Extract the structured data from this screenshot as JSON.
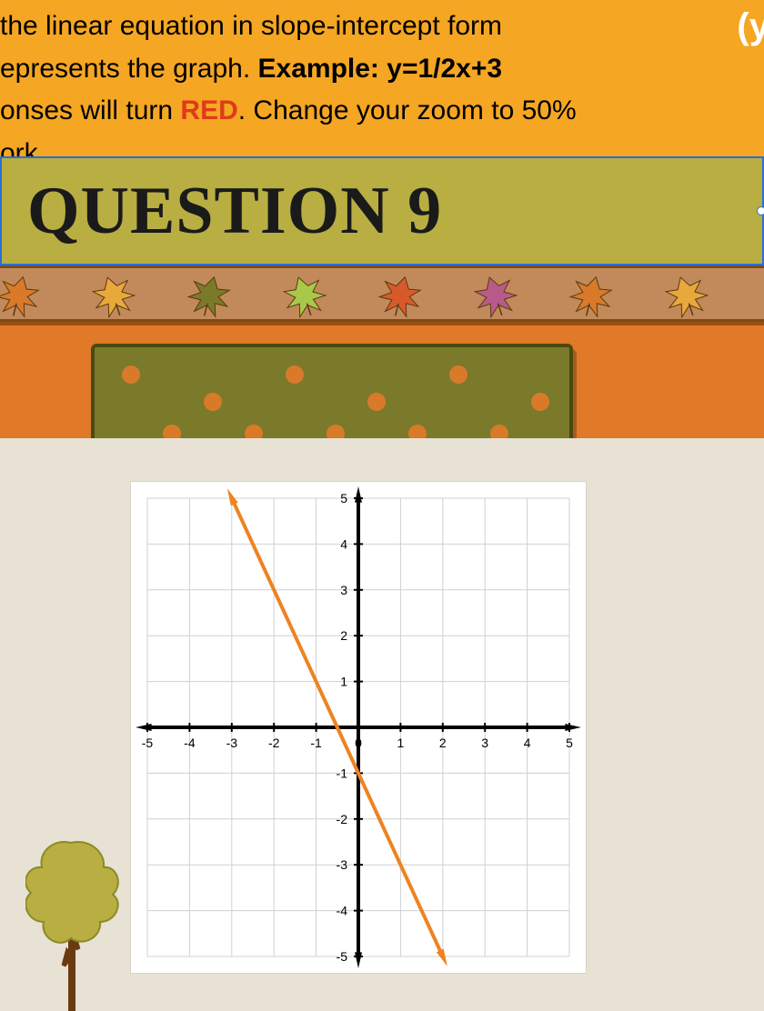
{
  "instructions": {
    "line1_left": " the linear equation in slope-intercept form ",
    "paren_fragment": "(y",
    "line2_left": "epresents the graph. ",
    "line2_bold": "Example: y=1/2x+3",
    "line3_left": "onses will turn ",
    "line3_red": "RED",
    "line3_right": ". Change your zoom to 50%",
    "line4": "ork"
  },
  "banner": {
    "title": "QUESTION 9"
  },
  "leaf_strip": {
    "background": "#c28a5a",
    "leaf_colors": [
      "#d87a2a",
      "#e8a83a",
      "#7a7a2a",
      "#a8c84a",
      "#d85a2a",
      "#b85a8a"
    ],
    "leaf_count": 8
  },
  "olive_box": {
    "background": "#7a7a2a",
    "dot_color": "#d87a2a",
    "dot_radius": 10,
    "dots": [
      [
        40,
        30
      ],
      [
        130,
        60
      ],
      [
        220,
        30
      ],
      [
        310,
        60
      ],
      [
        400,
        30
      ],
      [
        490,
        60
      ],
      [
        85,
        95
      ],
      [
        175,
        95
      ],
      [
        265,
        95
      ],
      [
        355,
        95
      ],
      [
        445,
        95
      ]
    ]
  },
  "chart": {
    "type": "line",
    "xlim": [
      -5,
      5
    ],
    "ylim": [
      -5,
      5
    ],
    "xtick_step": 1,
    "ytick_step": 1,
    "x_labels": [
      "-5",
      "-4",
      "-3",
      "-2",
      "-1",
      "0",
      "1",
      "2",
      "3",
      "4",
      "5"
    ],
    "y_labels_pos": [
      "1",
      "2",
      "3",
      "4",
      "5"
    ],
    "y_labels_neg": [
      "-1",
      "-2",
      "-3",
      "-4",
      "-5"
    ],
    "grid_color": "#d0d0d0",
    "axis_color": "#000000",
    "axis_width": 4,
    "line_color": "#ee8322",
    "line_width": 4,
    "points": [
      [
        -3,
        5
      ],
      [
        2,
        -5
      ]
    ],
    "label_fontsize": 14,
    "label_color": "#000000",
    "background_color": "#ffffff"
  },
  "tree": {
    "foliage_color": "#b8ae42",
    "trunk_color": "#6a3a12"
  }
}
